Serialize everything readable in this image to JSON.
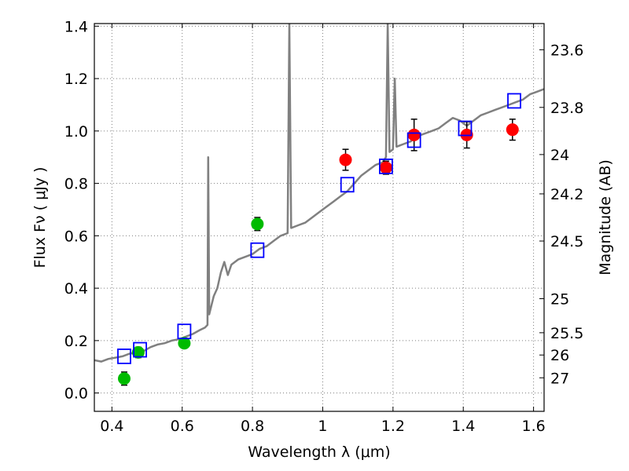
{
  "chart_data": {
    "type": "scatter",
    "xlabel": "Wavelength  λ (μm)",
    "ylabel": "Flux  Fν  ( μJy )",
    "ylabel_right": "Magnitude (AB)",
    "xlim": [
      0.35,
      1.63
    ],
    "ylim": [
      -0.07,
      1.41
    ],
    "x_ticks": [
      0.4,
      0.6,
      0.8,
      1.0,
      1.2,
      1.4,
      1.6
    ],
    "x_tick_labels": [
      "0.4",
      "0.6",
      "0.8",
      "1",
      "1.2",
      "1.4",
      "1.6"
    ],
    "y_ticks": [
      0.0,
      0.2,
      0.4,
      0.6,
      0.8,
      1.0,
      1.2,
      1.4
    ],
    "y_tick_labels": [
      "0.0",
      "0.2",
      "0.4",
      "0.6",
      "0.8",
      "1.0",
      "1.2",
      "1.4"
    ],
    "right_axis_ticks": [
      {
        "label": "23.6",
        "flux": 1.31
      },
      {
        "label": "23.8",
        "flux": 1.09
      },
      {
        "label": "24",
        "flux": 0.91
      },
      {
        "label": "24.2",
        "flux": 0.76
      },
      {
        "label": "24.5",
        "flux": 0.58
      },
      {
        "label": "25",
        "flux": 0.36
      },
      {
        "label": "25.5",
        "flux": 0.23
      },
      {
        "label": "26",
        "flux": 0.145
      },
      {
        "label": "27",
        "flux": 0.058
      }
    ],
    "grid": true,
    "colors": {
      "model": "#808080",
      "optical": "#00bb00",
      "nir": "#ff0000",
      "model_boxes": "#0000ff",
      "errorbar": "#000000"
    },
    "series": [
      {
        "name": "Model spectrum",
        "kind": "line",
        "points": [
          [
            0.35,
            0.125
          ],
          [
            0.37,
            0.12
          ],
          [
            0.39,
            0.13
          ],
          [
            0.41,
            0.135
          ],
          [
            0.43,
            0.14
          ],
          [
            0.45,
            0.15
          ],
          [
            0.47,
            0.155
          ],
          [
            0.49,
            0.16
          ],
          [
            0.51,
            0.175
          ],
          [
            0.53,
            0.185
          ],
          [
            0.55,
            0.19
          ],
          [
            0.57,
            0.2
          ],
          [
            0.59,
            0.205
          ],
          [
            0.61,
            0.215
          ],
          [
            0.63,
            0.225
          ],
          [
            0.65,
            0.24
          ],
          [
            0.665,
            0.25
          ],
          [
            0.672,
            0.26
          ],
          [
            0.674,
            0.9
          ],
          [
            0.677,
            0.3
          ],
          [
            0.69,
            0.37
          ],
          [
            0.7,
            0.4
          ],
          [
            0.71,
            0.46
          ],
          [
            0.72,
            0.5
          ],
          [
            0.73,
            0.45
          ],
          [
            0.74,
            0.49
          ],
          [
            0.76,
            0.51
          ],
          [
            0.78,
            0.52
          ],
          [
            0.8,
            0.53
          ],
          [
            0.82,
            0.55
          ],
          [
            0.84,
            0.56
          ],
          [
            0.86,
            0.58
          ],
          [
            0.88,
            0.6
          ],
          [
            0.9,
            0.61
          ],
          [
            0.905,
            1.41
          ],
          [
            0.91,
            0.63
          ],
          [
            0.93,
            0.64
          ],
          [
            0.95,
            0.65
          ],
          [
            0.97,
            0.67
          ],
          [
            0.99,
            0.69
          ],
          [
            1.01,
            0.71
          ],
          [
            1.03,
            0.73
          ],
          [
            1.05,
            0.75
          ],
          [
            1.07,
            0.77
          ],
          [
            1.09,
            0.8
          ],
          [
            1.11,
            0.83
          ],
          [
            1.13,
            0.85
          ],
          [
            1.15,
            0.87
          ],
          [
            1.17,
            0.88
          ],
          [
            1.18,
            0.9
          ],
          [
            1.185,
            1.41
          ],
          [
            1.19,
            0.92
          ],
          [
            1.2,
            0.93
          ],
          [
            1.205,
            1.2
          ],
          [
            1.21,
            0.94
          ],
          [
            1.23,
            0.95
          ],
          [
            1.25,
            0.96
          ],
          [
            1.27,
            0.98
          ],
          [
            1.29,
            0.99
          ],
          [
            1.31,
            1.0
          ],
          [
            1.33,
            1.01
          ],
          [
            1.35,
            1.03
          ],
          [
            1.37,
            1.05
          ],
          [
            1.39,
            1.04
          ],
          [
            1.41,
            1.02
          ],
          [
            1.43,
            1.04
          ],
          [
            1.45,
            1.06
          ],
          [
            1.47,
            1.07
          ],
          [
            1.49,
            1.08
          ],
          [
            1.51,
            1.09
          ],
          [
            1.53,
            1.1
          ],
          [
            1.55,
            1.11
          ],
          [
            1.57,
            1.12
          ],
          [
            1.59,
            1.14
          ],
          [
            1.61,
            1.15
          ],
          [
            1.63,
            1.16
          ]
        ]
      },
      {
        "name": "Optical photometry",
        "kind": "points",
        "marker": "circle",
        "color_key": "optical",
        "x": [
          0.435,
          0.475,
          0.606,
          0.814
        ],
        "y": [
          0.055,
          0.155,
          0.19,
          0.645
        ],
        "yerr": [
          0.025,
          0.02,
          0.015,
          0.025
        ]
      },
      {
        "name": "Near-IR photometry",
        "kind": "points",
        "marker": "circle",
        "color_key": "nir",
        "x": [
          1.065,
          1.18,
          1.26,
          1.41,
          1.54
        ],
        "y": [
          0.89,
          0.86,
          0.985,
          0.985,
          1.005
        ],
        "yerr": [
          0.04,
          0.025,
          0.06,
          0.05,
          0.04
        ]
      },
      {
        "name": "Model photometry",
        "kind": "points",
        "marker": "square",
        "color_key": "model_boxes",
        "x": [
          0.435,
          0.48,
          0.606,
          0.814,
          1.07,
          1.18,
          1.26,
          1.405,
          1.545
        ],
        "y": [
          0.14,
          0.165,
          0.235,
          0.545,
          0.795,
          0.865,
          0.965,
          1.01,
          1.115
        ]
      }
    ]
  }
}
